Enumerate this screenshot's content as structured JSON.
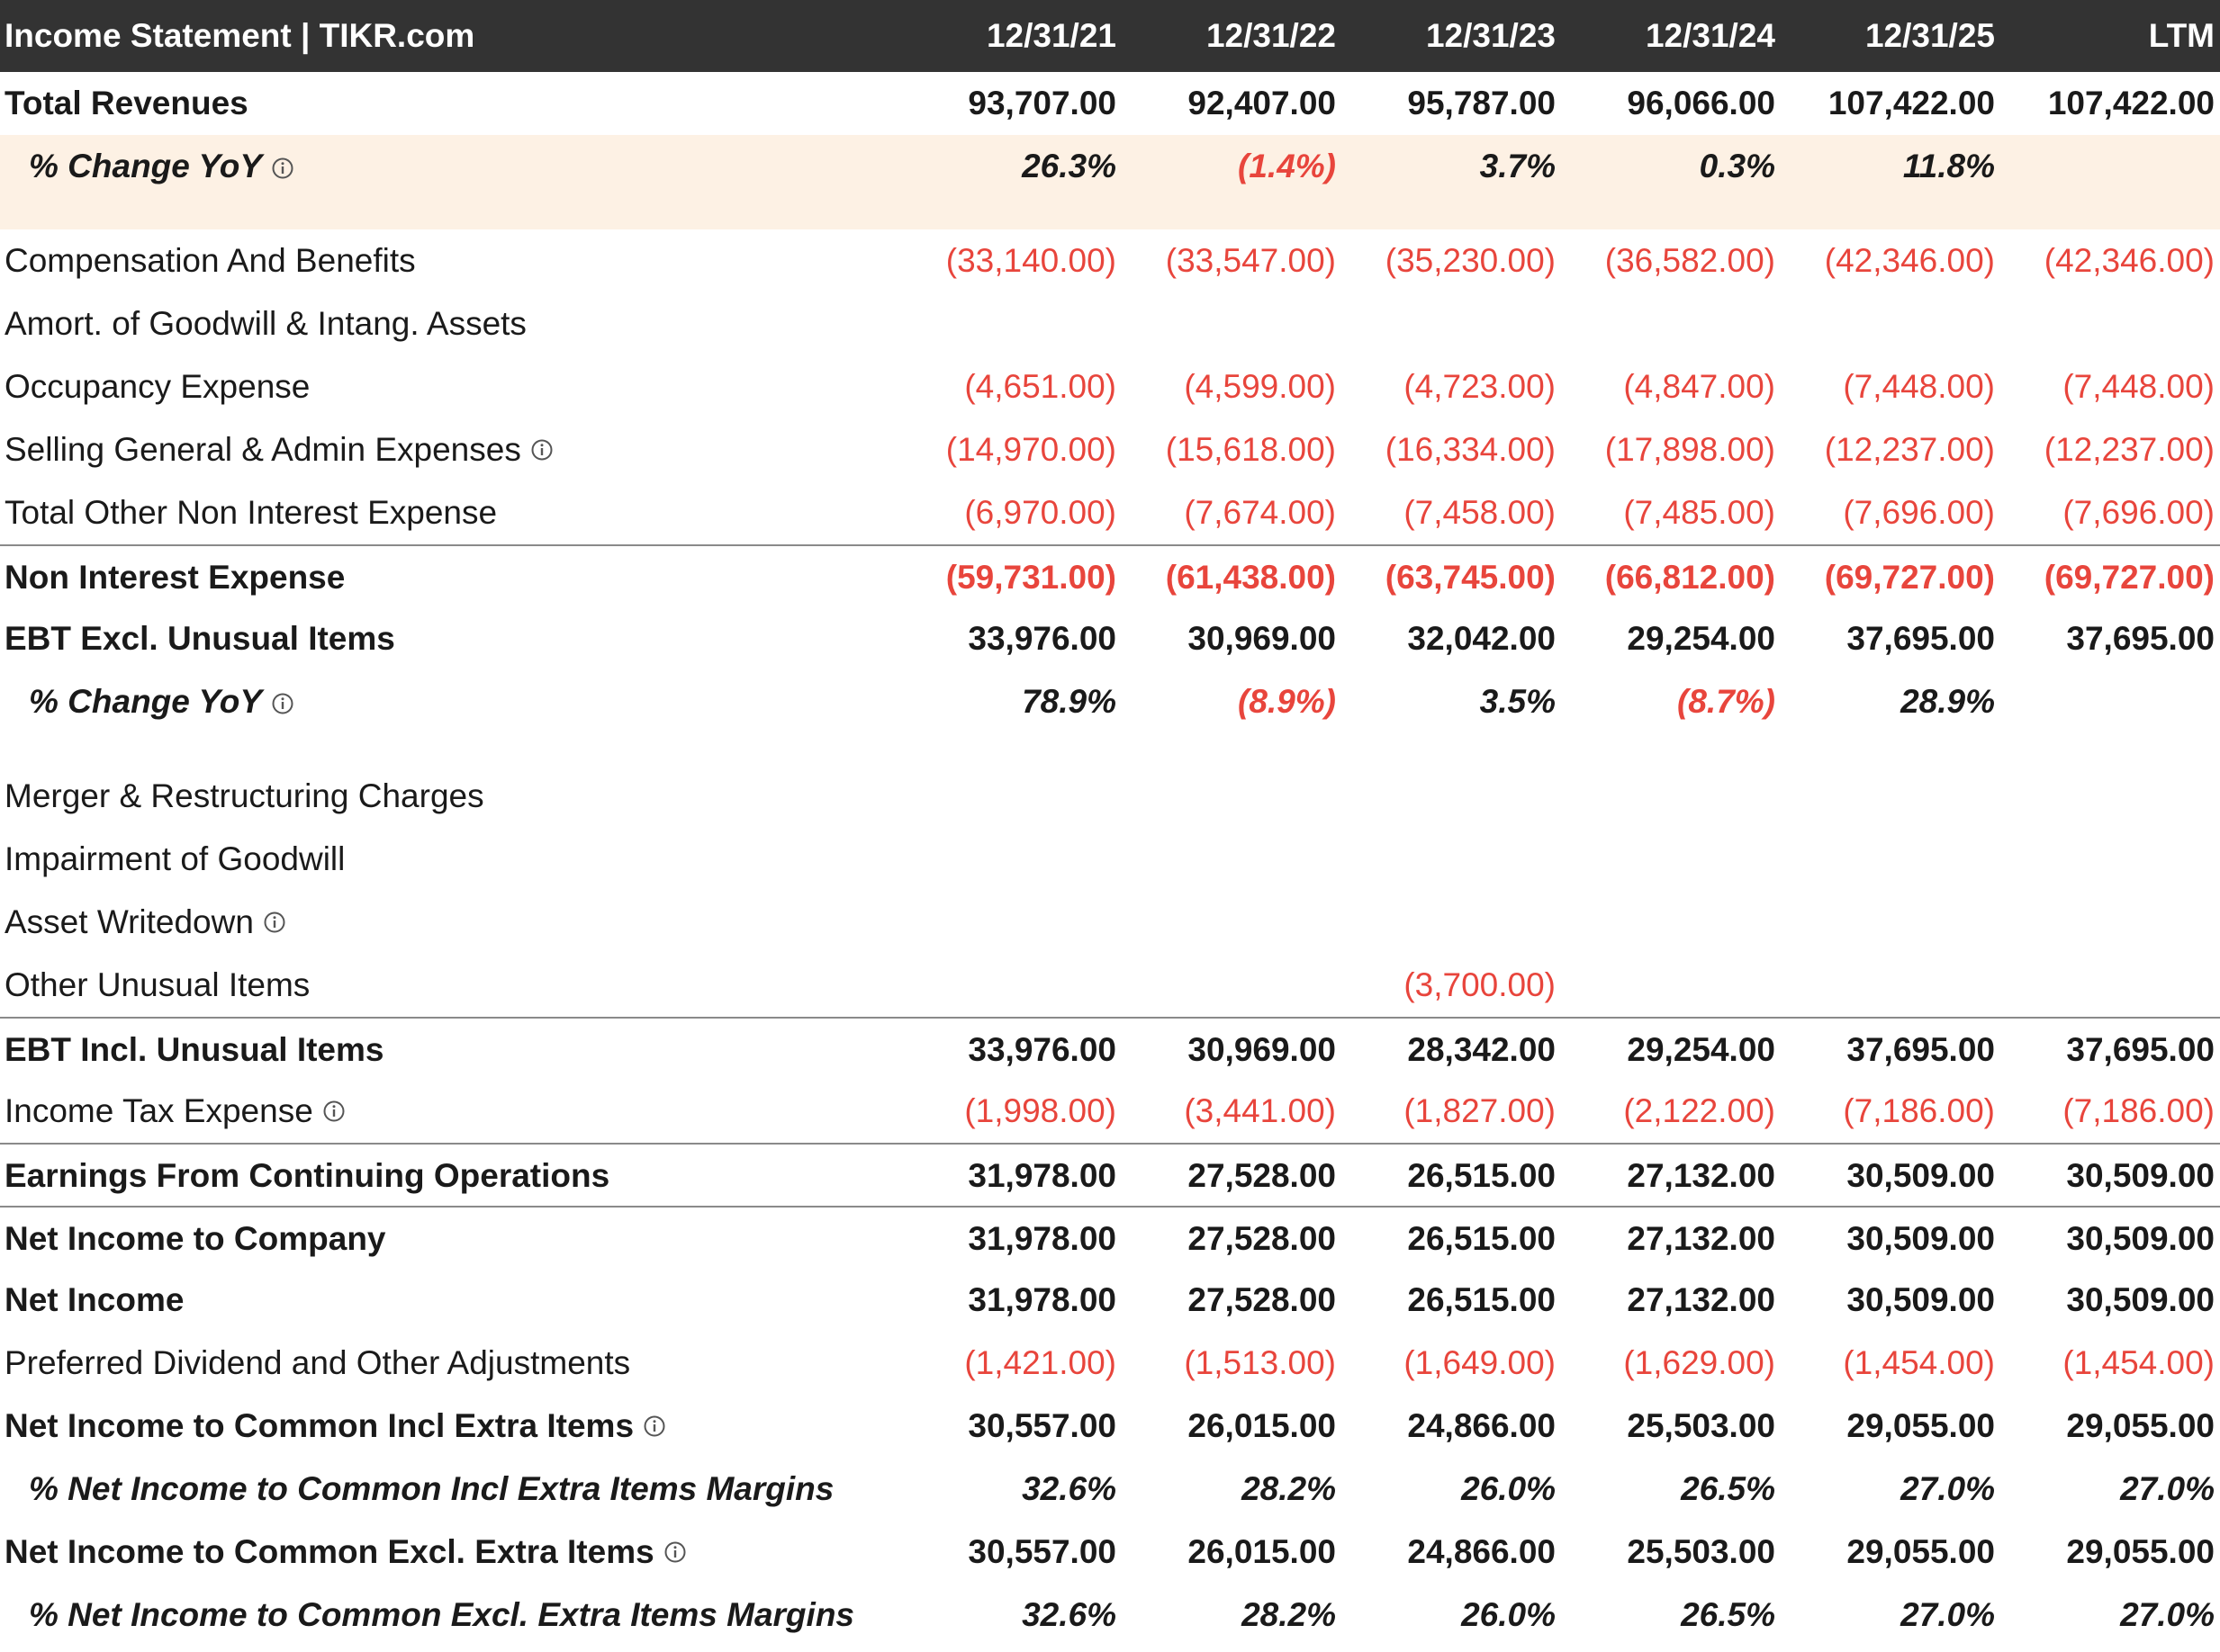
{
  "header": {
    "title": "Income Statement | TIKR.com",
    "columns": [
      "12/31/21",
      "12/31/22",
      "12/31/23",
      "12/31/24",
      "12/31/25",
      "LTM"
    ]
  },
  "rows": [
    {
      "label": "Total Revenues",
      "values": [
        "93,707.00",
        "92,407.00",
        "95,787.00",
        "96,066.00",
        "107,422.00",
        "107,422.00"
      ]
    },
    {
      "label": "% Change YoY",
      "values": [
        "26.3%",
        "(1.4%)",
        "3.7%",
        "0.3%",
        "11.8%",
        null
      ]
    },
    {
      "label": "Compensation And Benefits",
      "values": [
        "(33,140.00)",
        "(33,547.00)",
        "(35,230.00)",
        "(36,582.00)",
        "(42,346.00)",
        "(42,346.00)"
      ]
    },
    {
      "label": "Amort. of Goodwill & Intang. Assets",
      "values": [
        null,
        null,
        null,
        null,
        null,
        null
      ]
    },
    {
      "label": "Occupancy Expense",
      "values": [
        "(4,651.00)",
        "(4,599.00)",
        "(4,723.00)",
        "(4,847.00)",
        "(7,448.00)",
        "(7,448.00)"
      ]
    },
    {
      "label": "Selling General & Admin Expenses",
      "values": [
        "(14,970.00)",
        "(15,618.00)",
        "(16,334.00)",
        "(17,898.00)",
        "(12,237.00)",
        "(12,237.00)"
      ]
    },
    {
      "label": "Total Other Non Interest Expense",
      "values": [
        "(6,970.00)",
        "(7,674.00)",
        "(7,458.00)",
        "(7,485.00)",
        "(7,696.00)",
        "(7,696.00)"
      ]
    },
    {
      "label": "Non Interest Expense",
      "values": [
        "(59,731.00)",
        "(61,438.00)",
        "(63,745.00)",
        "(66,812.00)",
        "(69,727.00)",
        "(69,727.00)"
      ]
    },
    {
      "label": "EBT Excl. Unusual Items",
      "values": [
        "33,976.00",
        "30,969.00",
        "32,042.00",
        "29,254.00",
        "37,695.00",
        "37,695.00"
      ]
    },
    {
      "label": "% Change YoY",
      "values": [
        "78.9%",
        "(8.9%)",
        "3.5%",
        "(8.7%)",
        "28.9%",
        null
      ]
    },
    {
      "label": "Merger & Restructuring Charges",
      "values": [
        null,
        null,
        null,
        null,
        null,
        null
      ]
    },
    {
      "label": "Impairment of Goodwill",
      "values": [
        null,
        null,
        null,
        null,
        null,
        null
      ]
    },
    {
      "label": "Asset Writedown",
      "values": [
        null,
        null,
        null,
        null,
        null,
        null
      ]
    },
    {
      "label": "Other Unusual Items",
      "values": [
        null,
        null,
        "(3,700.00)",
        null,
        null,
        null
      ]
    },
    {
      "label": "EBT Incl. Unusual Items",
      "values": [
        "33,976.00",
        "30,969.00",
        "28,342.00",
        "29,254.00",
        "37,695.00",
        "37,695.00"
      ]
    },
    {
      "label": "Income Tax Expense",
      "values": [
        "(1,998.00)",
        "(3,441.00)",
        "(1,827.00)",
        "(2,122.00)",
        "(7,186.00)",
        "(7,186.00)"
      ]
    },
    {
      "label": "Earnings From Continuing Operations",
      "values": [
        "31,978.00",
        "27,528.00",
        "26,515.00",
        "27,132.00",
        "30,509.00",
        "30,509.00"
      ]
    },
    {
      "label": "Net Income to Company",
      "values": [
        "31,978.00",
        "27,528.00",
        "26,515.00",
        "27,132.00",
        "30,509.00",
        "30,509.00"
      ]
    },
    {
      "label": "Net Income",
      "values": [
        "31,978.00",
        "27,528.00",
        "26,515.00",
        "27,132.00",
        "30,509.00",
        "30,509.00"
      ]
    },
    {
      "label": "Preferred Dividend and Other Adjustments",
      "values": [
        "(1,421.00)",
        "(1,513.00)",
        "(1,649.00)",
        "(1,629.00)",
        "(1,454.00)",
        "(1,454.00)"
      ]
    },
    {
      "label": "Net Income to Common Incl Extra Items",
      "values": [
        "30,557.00",
        "26,015.00",
        "24,866.00",
        "25,503.00",
        "29,055.00",
        "29,055.00"
      ]
    },
    {
      "label": "% Net Income to Common Incl Extra Items Margins",
      "values": [
        "32.6%",
        "28.2%",
        "26.0%",
        "26.5%",
        "27.0%",
        "27.0%"
      ]
    },
    {
      "label": "Net Income to Common Excl. Extra Items",
      "values": [
        "30,557.00",
        "26,015.00",
        "24,866.00",
        "25,503.00",
        "29,055.00",
        "29,055.00"
      ]
    },
    {
      "label": "% Net Income to Common Excl. Extra Items Margins",
      "values": [
        "32.6%",
        "28.2%",
        "26.0%",
        "26.5%",
        "27.0%",
        "27.0%"
      ]
    }
  ]
}
